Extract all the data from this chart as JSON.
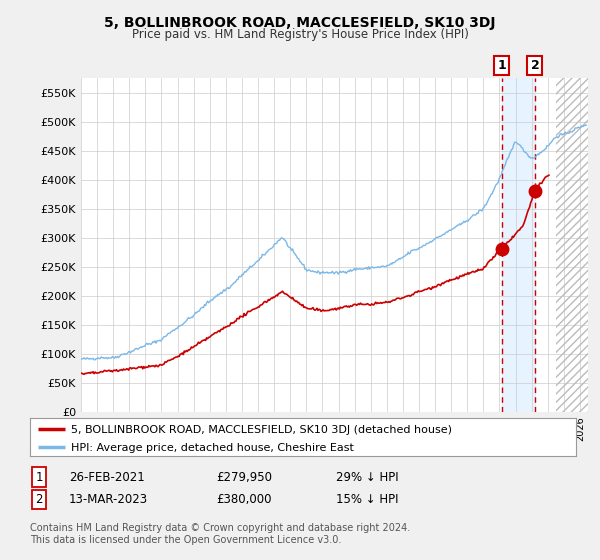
{
  "title": "5, BOLLINBROOK ROAD, MACCLESFIELD, SK10 3DJ",
  "subtitle": "Price paid vs. HM Land Registry's House Price Index (HPI)",
  "ylabel_ticks": [
    "£0",
    "£50K",
    "£100K",
    "£150K",
    "£200K",
    "£250K",
    "£300K",
    "£350K",
    "£400K",
    "£450K",
    "£500K",
    "£550K"
  ],
  "ytick_vals": [
    0,
    50000,
    100000,
    150000,
    200000,
    250000,
    300000,
    350000,
    400000,
    450000,
    500000,
    550000
  ],
  "ylim": [
    0,
    575000
  ],
  "xlim_start": 1995.0,
  "xlim_end": 2026.5,
  "hpi_color": "#7ab8e8",
  "price_color": "#cc0000",
  "marker_color": "#cc0000",
  "sale1_year": 2021.15,
  "sale1_price": 279950,
  "sale2_year": 2023.2,
  "sale2_price": 380000,
  "shade_color": "#ddeeff",
  "hatch_color": "#cccccc",
  "future_year": 2024.5,
  "legend_line1": "5, BOLLINBROOK ROAD, MACCLESFIELD, SK10 3DJ (detached house)",
  "legend_line2": "HPI: Average price, detached house, Cheshire East",
  "table_row1": [
    "1",
    "26-FEB-2021",
    "£279,950",
    "29% ↓ HPI"
  ],
  "table_row2": [
    "2",
    "13-MAR-2023",
    "£380,000",
    "15% ↓ HPI"
  ],
  "footnote1": "Contains HM Land Registry data © Crown copyright and database right 2024.",
  "footnote2": "This data is licensed under the Open Government Licence v3.0.",
  "bg_color": "#f0f0f0",
  "plot_bg": "#ffffff",
  "grid_color": "#cccccc",
  "label_box_color": "#cc0000"
}
